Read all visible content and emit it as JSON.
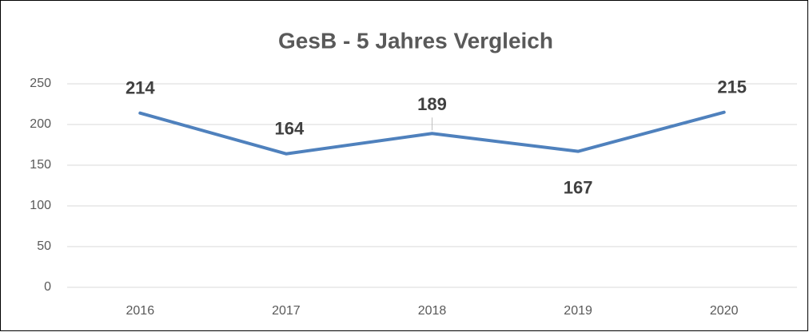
{
  "chart_data": {
    "type": "line",
    "title": "GesB - 5 Jahres Vergleich",
    "categories": [
      "2016",
      "2017",
      "2018",
      "2019",
      "2020"
    ],
    "values": [
      214,
      164,
      189,
      167,
      215
    ],
    "color": "#4f81bd",
    "ylim": [
      0,
      250
    ],
    "yticks": [
      0,
      50,
      100,
      150,
      200,
      250
    ],
    "grid": true
  }
}
